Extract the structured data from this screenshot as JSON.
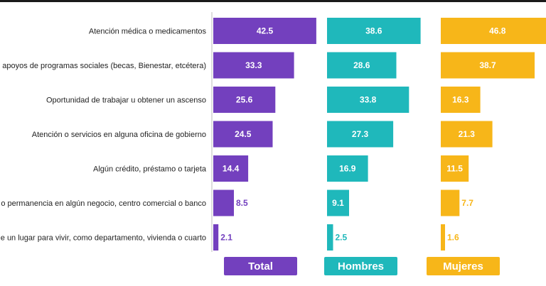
{
  "chart_data": {
    "type": "bar",
    "orientation": "horizontal",
    "title": "",
    "xlabel": "",
    "ylabel": "",
    "grid": false,
    "legend_position": "bottom",
    "categories": [
      "Atención médica o medicamentos",
      "cibir apoyos de programas sociales (becas, Bienestar, etcétera)",
      "Oportunidad de trabajar u obtener un ascenso",
      "Atención o servicios en alguna oficina de gobierno",
      "Algún crédito, préstamo o tarjeta",
      "ada o permanencia en algún negocio, centro comercial o banco",
      "ta de un lugar para vivir, como departamento, vivienda o cuarto"
    ],
    "series": [
      {
        "name": "Total",
        "color": "#7340BE",
        "values": [
          42.5,
          33.3,
          25.6,
          24.5,
          14.4,
          8.5,
          2.1
        ]
      },
      {
        "name": "Hombres",
        "color": "#1FB8BB",
        "values": [
          38.6,
          28.6,
          33.8,
          27.3,
          16.9,
          9.1,
          2.5
        ]
      },
      {
        "name": "Mujeres",
        "color": "#F7B619",
        "values": [
          46.8,
          38.7,
          16.3,
          21.3,
          11.5,
          7.7,
          1.6
        ]
      }
    ]
  }
}
